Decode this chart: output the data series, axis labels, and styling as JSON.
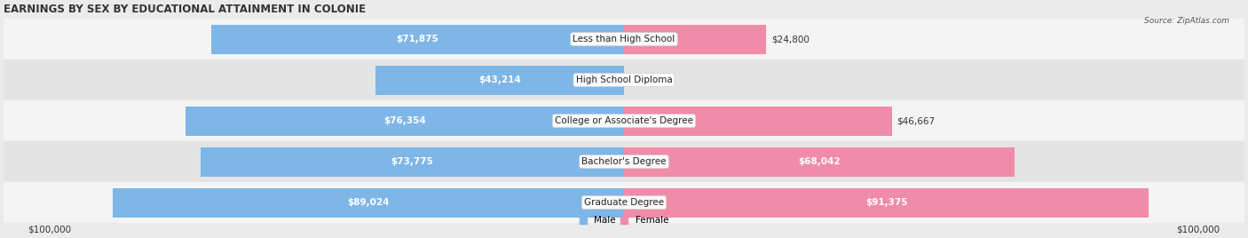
{
  "title": "EARNINGS BY SEX BY EDUCATIONAL ATTAINMENT IN COLONIE",
  "source": "Source: ZipAtlas.com",
  "categories": [
    "Less than High School",
    "High School Diploma",
    "College or Associate's Degree",
    "Bachelor's Degree",
    "Graduate Degree"
  ],
  "male_values": [
    71875,
    43214,
    76354,
    73775,
    89024
  ],
  "female_values": [
    24800,
    0,
    46667,
    68042,
    91375
  ],
  "male_color": "#7EB6E8",
  "female_color": "#F08BAA",
  "male_label": "Male",
  "female_label": "Female",
  "max_value": 100000,
  "x_label_left": "$100,000",
  "x_label_right": "$100,000",
  "background_color": "#ebebeb",
  "row_bg_colors": [
    "#f4f4f4",
    "#e4e4e4"
  ],
  "title_fontsize": 8.5,
  "bar_fontsize": 7.5,
  "category_fontsize": 7.5,
  "tick_fontsize": 7.5,
  "bar_height": 0.72,
  "male_label_inside_threshold": 15000,
  "female_label_inside_threshold": 55000
}
